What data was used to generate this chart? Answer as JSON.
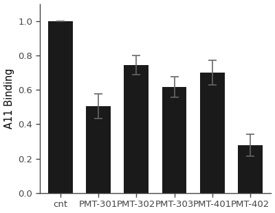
{
  "categories": [
    "cnt",
    "PMT-301",
    "PMT-302",
    "PMT-303",
    "PMT-401",
    "PMT-402"
  ],
  "values": [
    1.0,
    0.505,
    0.745,
    0.618,
    0.7,
    0.278
  ],
  "errors": [
    0.0,
    0.072,
    0.055,
    0.06,
    0.072,
    0.065
  ],
  "bar_color": "#1a1a1a",
  "error_color": "#666666",
  "ylabel": "A11 Binding",
  "ylim": [
    0,
    1.1
  ],
  "yticks": [
    0.0,
    0.2,
    0.4,
    0.6,
    0.8,
    1.0
  ],
  "figsize": [
    4.0,
    3.11
  ],
  "dpi": 100,
  "background_color": "#ffffff",
  "bar_width": 0.65,
  "spine_color": "#444444",
  "tick_label_fontsize": 9.5,
  "ylabel_fontsize": 10.5
}
